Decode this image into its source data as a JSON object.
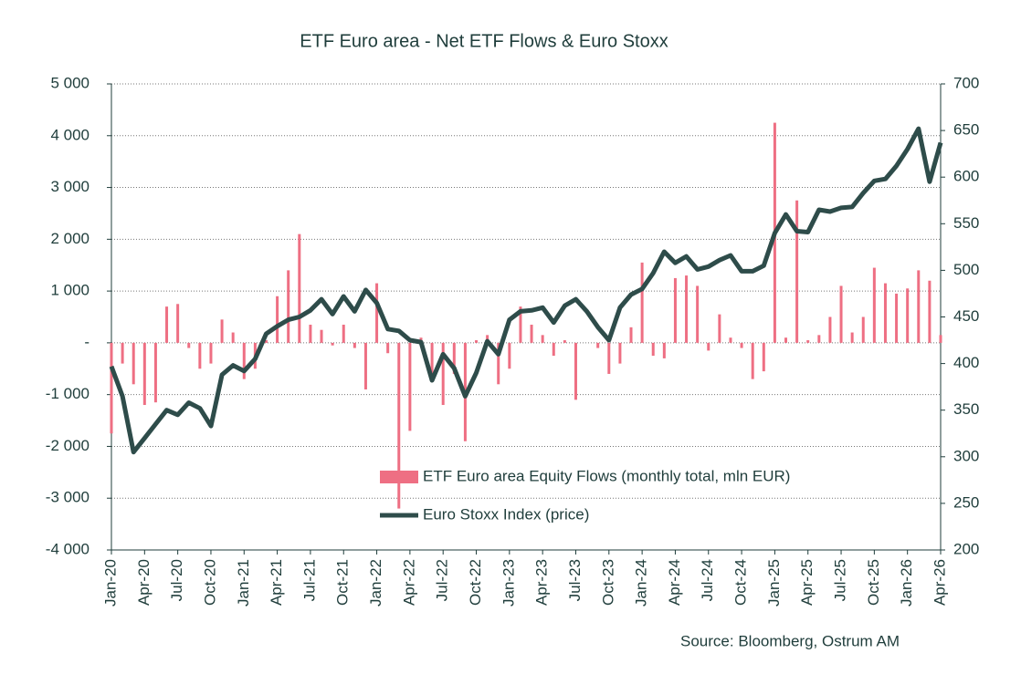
{
  "chart_data": {
    "type": "combo",
    "title": "ETF Euro area - Net ETF Flows & Euro Stoxx",
    "source": "Source: Bloomberg, Ostrum AM",
    "categories": [
      "Jan-20",
      null,
      null,
      "Apr-20",
      null,
      null,
      "Jul-20",
      null,
      null,
      "Oct-20",
      null,
      null,
      "Jan-21",
      null,
      null,
      "Apr-21",
      null,
      null,
      "Jul-21",
      null,
      null,
      "Oct-21",
      null,
      null,
      "Jan-22",
      null,
      null,
      "Apr-22",
      null,
      null,
      "Jul-22",
      null,
      null,
      "Oct-22",
      null,
      null,
      "Jan-23",
      null,
      null,
      "Apr-23",
      null,
      null,
      "Jul-23",
      null,
      null,
      "Oct-23",
      null,
      null,
      "Jan-24",
      null,
      null,
      "Apr-24",
      null,
      null,
      "Jul-24",
      null,
      null,
      "Oct-24",
      null,
      null,
      "Jan-25",
      null,
      null,
      "Apr-25",
      null,
      null,
      "Jul-25",
      null,
      null,
      "Oct-25",
      null,
      null,
      "Jan-26",
      null,
      null,
      "Apr-26"
    ],
    "series": [
      {
        "name": "ETF Euro area Equity Flows (monthly total, mln EUR)",
        "type": "bar",
        "color": "#ee6f83",
        "values": [
          -1750,
          -400,
          -800,
          -1200,
          -1150,
          700,
          750,
          -100,
          -500,
          -400,
          450,
          200,
          -700,
          -500,
          50,
          900,
          1400,
          2100,
          350,
          250,
          -50,
          350,
          -100,
          -900,
          1150,
          -200,
          -3200,
          -1700,
          100,
          -700,
          -1200,
          -600,
          -1900,
          50,
          150,
          -800,
          -500,
          700,
          350,
          150,
          -250,
          50,
          -1100,
          0,
          -100,
          -600,
          -400,
          300,
          1550,
          -250,
          -300,
          1250,
          1300,
          1100,
          -150,
          550,
          100,
          -100,
          -700,
          -550,
          4250,
          100,
          2750,
          50,
          150,
          500,
          1100,
          200,
          500,
          1450,
          1150,
          950,
          1050,
          1400,
          1200,
          150
        ]
      },
      {
        "name": "Euro Stoxx Index (price)",
        "type": "line",
        "axis": "y2",
        "color": "#2e4c4a",
        "values": [
          397,
          365,
          305,
          320,
          335,
          350,
          345,
          358,
          352,
          333,
          388,
          398,
          392,
          405,
          432,
          440,
          447,
          450,
          457,
          469,
          453,
          472,
          456,
          479,
          465,
          437,
          435,
          425,
          423,
          382,
          410,
          395,
          365,
          390,
          424,
          410,
          447,
          456,
          457,
          460,
          444,
          462,
          469,
          456,
          439,
          425,
          460,
          474,
          480,
          497,
          520,
          508,
          515,
          501,
          504,
          511,
          516,
          499,
          499,
          505,
          540,
          560,
          542,
          541,
          565,
          563,
          567,
          568,
          583,
          596,
          598,
          612,
          630,
          652,
          595,
          637
        ]
      }
    ],
    "ylim": [
      -4000,
      5000
    ],
    "yticks": [
      {
        "value": -4000,
        "label": "-4 000"
      },
      {
        "value": -3000,
        "label": "-3 000"
      },
      {
        "value": -2000,
        "label": "-2 000"
      },
      {
        "value": -1000,
        "label": "-1 000"
      },
      {
        "value": 0,
        "label": "-"
      },
      {
        "value": 1000,
        "label": "1 000"
      },
      {
        "value": 2000,
        "label": "2 000"
      },
      {
        "value": 3000,
        "label": "3 000"
      },
      {
        "value": 4000,
        "label": "4 000"
      },
      {
        "value": 5000,
        "label": "5 000"
      }
    ],
    "y2lim": [
      200,
      700
    ],
    "y2ticks": [
      200,
      250,
      300,
      350,
      400,
      450,
      500,
      550,
      600,
      650,
      700
    ],
    "grid": true
  }
}
